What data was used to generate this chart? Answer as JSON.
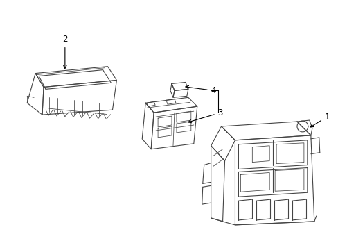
{
  "background_color": "#ffffff",
  "line_color": "#444444",
  "line_width": 0.8,
  "label_color": "#000000",
  "label_fontsize": 8.5,
  "figsize": [
    4.89,
    3.6
  ],
  "dpi": 100
}
